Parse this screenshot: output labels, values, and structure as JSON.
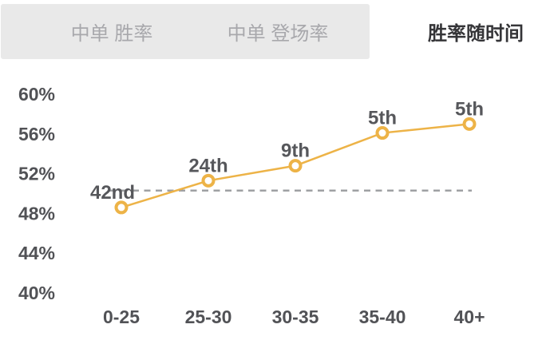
{
  "tabs": [
    {
      "label": "中单 胜率",
      "active": false
    },
    {
      "label": "中单 登场率",
      "active": false
    },
    {
      "label": "胜率随时间",
      "active": true
    }
  ],
  "chart_data": {
    "type": "line",
    "title": "胜率随时间",
    "categories": [
      "0-25",
      "25-30",
      "30-35",
      "35-40",
      "40+"
    ],
    "series": [
      {
        "name": "胜率随时间",
        "values": [
          48.6,
          51.3,
          52.8,
          56.1,
          57.0
        ],
        "point_labels": [
          "42nd",
          "24th",
          "9th",
          "5th",
          "5th"
        ],
        "color": "#edb347"
      }
    ],
    "y_tick_labels": [
      "60%",
      "56%",
      "52%",
      "48%",
      "44%",
      "40%"
    ],
    "y_tick_values": [
      60,
      56,
      52,
      48,
      44,
      40
    ],
    "ylim": [
      40,
      60
    ],
    "grid": false,
    "legend": "none",
    "marker_style": "open-circle",
    "reference_line": {
      "value": 50.3,
      "style": "dashed",
      "color": "#9fa0a3"
    }
  },
  "colors": {
    "accent_gold": "#edb347",
    "tab_bar_bg": "#e9e9e9",
    "inactive_tab_text": "#a8a8ac",
    "active_tab_text": "#353538",
    "axis_text": "#515256",
    "point_label_text": "#56575b",
    "dashed_line": "#9fa0a3"
  }
}
